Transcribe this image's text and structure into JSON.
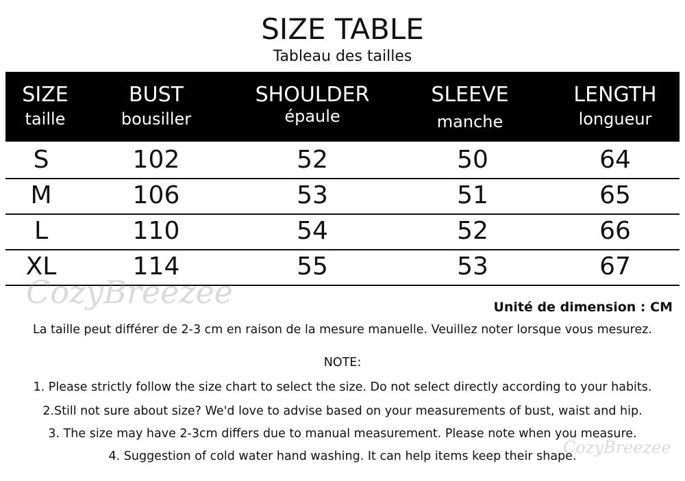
{
  "title": "SIZE TABLE",
  "subtitle": "Tableau des tailles",
  "headers": [
    {
      "en": "SIZE",
      "fr": "taille"
    },
    {
      "en": "BUST",
      "fr": "bousiller"
    },
    {
      "en": "SHOULDER",
      "fr": "épaule"
    },
    {
      "en": "SLEEVE",
      "fr": "manche"
    },
    {
      "en": "LENGTH",
      "fr": "longueur"
    }
  ],
  "rows": [
    [
      "S",
      "102",
      "52",
      "50",
      "64"
    ],
    [
      "M",
      "106",
      "53",
      "51",
      "65"
    ],
    [
      "L",
      "110",
      "54",
      "52",
      "66"
    ],
    [
      "XL",
      "114",
      "55",
      "53",
      "67"
    ]
  ],
  "unit": "Unité de dimension : CM",
  "disclaimer": "La taille peut différer de 2-3 cm en raison de la mesure manuelle. Veuillez noter lorsque vous mesurez.",
  "note_title": "NOTE:",
  "notes": [
    "1. Please strictly follow the size chart to select the size. Do not select directly according to your habits.",
    "2.Still not sure about size? We'd love to advise based on your measurements of bust, waist and hip.",
    "3. The size may have 2-3cm differs due to manual measurement. Please note when you measure.",
    "4. Suggestion of cold water hand washing. It can help items keep their shape."
  ],
  "watermark": "CozyBreezee"
}
